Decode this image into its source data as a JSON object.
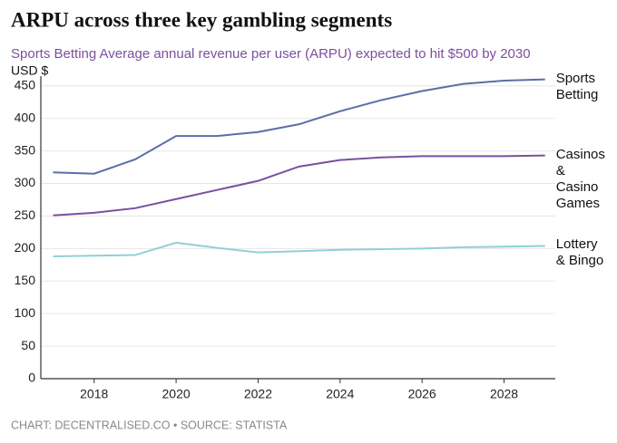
{
  "chart_data": {
    "type": "line",
    "title": "ARPU across three key gambling segments",
    "subtitle": "Sports Betting Average annual revenue per user (ARPU) expected to hit $500 by 2030",
    "y_axis_label": "USD $",
    "footer": "CHART: DECENTRALISED.CO • SOURCE: STATISTA",
    "x": [
      2017,
      2018,
      2019,
      2020,
      2021,
      2022,
      2023,
      2024,
      2025,
      2026,
      2027,
      2028,
      2029
    ],
    "series": [
      {
        "name": "Sports Betting",
        "color": "#5a6ea8",
        "values": [
          317,
          315,
          337,
          373,
          373,
          379,
          391,
          411,
          428,
          442,
          453,
          458,
          460
        ]
      },
      {
        "name": "Casinos & Casino Games",
        "color": "#7b4fa0",
        "values": [
          251,
          255,
          262,
          276,
          290,
          304,
          326,
          336,
          340,
          342,
          342,
          342,
          343
        ]
      },
      {
        "name": "Lottery & Bingo",
        "color": "#8fd0d8",
        "values": [
          188,
          189,
          190,
          209,
          201,
          194,
          196,
          198,
          199,
          200,
          202,
          203,
          204
        ]
      }
    ],
    "xlim": [
      2016.7,
      2029.25
    ],
    "xticks": [
      2018,
      2020,
      2022,
      2024,
      2026,
      2028
    ],
    "ylim": [
      0,
      465
    ],
    "yticks": [
      0,
      50,
      100,
      150,
      200,
      250,
      300,
      350,
      400,
      450
    ],
    "grid": true
  }
}
